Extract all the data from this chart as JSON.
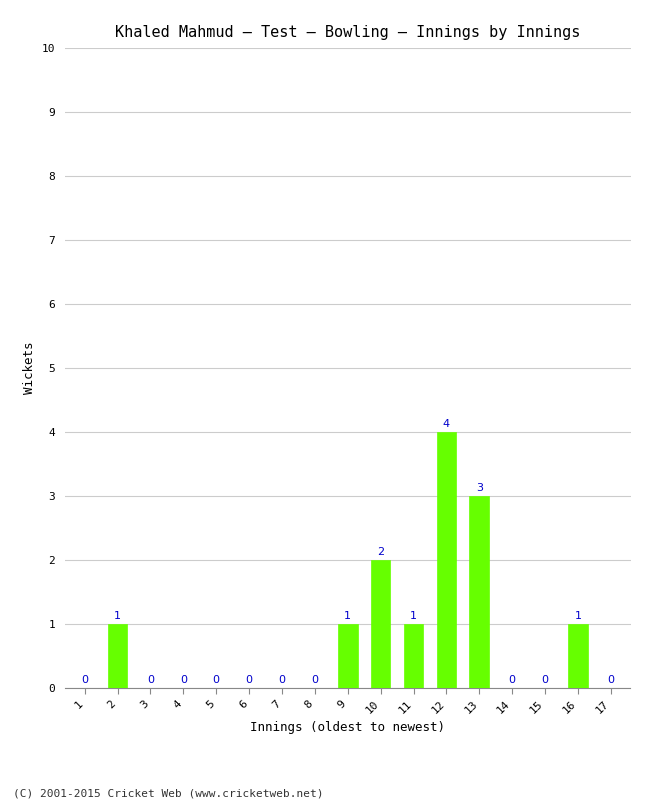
{
  "title": "Khaled Mahmud – Test – Bowling – Innings by Innings",
  "xlabel": "Innings (oldest to newest)",
  "ylabel": "Wickets",
  "categories": [
    1,
    2,
    3,
    4,
    5,
    6,
    7,
    8,
    9,
    10,
    11,
    12,
    13,
    14,
    15,
    16,
    17
  ],
  "values": [
    0,
    1,
    0,
    0,
    0,
    0,
    0,
    0,
    1,
    2,
    1,
    4,
    3,
    0,
    0,
    1,
    0
  ],
  "bar_color": "#66ff00",
  "zero_color": "#0000cc",
  "nonzero_label_color": "#0000cc",
  "ylim": [
    0,
    10
  ],
  "yticks": [
    0,
    1,
    2,
    3,
    4,
    5,
    6,
    7,
    8,
    9,
    10
  ],
  "background_color": "#ffffff",
  "grid_color": "#cccccc",
  "footer": "(C) 2001-2015 Cricket Web (www.cricketweb.net)",
  "title_fontsize": 11,
  "axis_label_fontsize": 9,
  "tick_fontsize": 8,
  "annotation_fontsize": 8,
  "footer_fontsize": 8
}
